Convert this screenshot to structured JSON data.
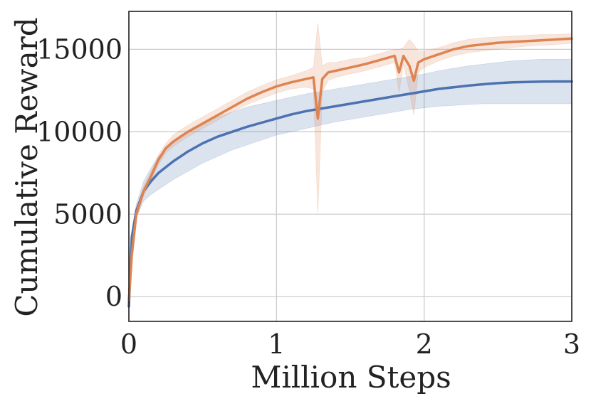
{
  "chart_data": {
    "type": "line",
    "xlabel": "Million Steps",
    "ylabel": "Cumulative Reward",
    "xlim": [
      0,
      3
    ],
    "ylim": [
      -1500,
      17300
    ],
    "xticks": [
      0,
      1,
      2,
      3
    ],
    "xtick_labels": [
      "0",
      "1",
      "2",
      "3"
    ],
    "yticks": [
      0,
      5000,
      10000,
      15000
    ],
    "ytick_labels": [
      "0",
      "5000",
      "10000",
      "15000"
    ],
    "grid": true,
    "legend": "none",
    "series": [
      {
        "color": "#4C72B0",
        "x": [
          0,
          0.02,
          0.05,
          0.1,
          0.15,
          0.2,
          0.3,
          0.4,
          0.5,
          0.6,
          0.7,
          0.8,
          0.9,
          1.0,
          1.1,
          1.2,
          1.3,
          1.4,
          1.5,
          1.6,
          1.7,
          1.8,
          1.9,
          2.0,
          2.1,
          2.2,
          2.3,
          2.4,
          2.5,
          2.6,
          2.7,
          2.8,
          2.9,
          3.0
        ],
        "y": [
          -600,
          3600,
          5200,
          6400,
          7000,
          7500,
          8200,
          8800,
          9300,
          9700,
          10000,
          10300,
          10550,
          10800,
          11050,
          11250,
          11400,
          11550,
          11700,
          11850,
          12000,
          12150,
          12300,
          12450,
          12600,
          12700,
          12800,
          12880,
          12950,
          13000,
          13020,
          13040,
          13050,
          13050
        ],
        "lower": [
          -600,
          3200,
          4800,
          5800,
          6200,
          6500,
          7100,
          7600,
          8100,
          8500,
          8900,
          9200,
          9500,
          9800,
          10000,
          10200,
          10400,
          10600,
          10750,
          10900,
          11050,
          11200,
          11350,
          11450,
          11550,
          11600,
          11650,
          11700,
          11700,
          11700,
          11700,
          11700,
          11700,
          11700
        ],
        "upper": [
          -600,
          4000,
          5600,
          7000,
          7800,
          8500,
          9300,
          10000,
          10500,
          10900,
          11200,
          11500,
          11700,
          11900,
          12100,
          12300,
          12450,
          12600,
          12750,
          12900,
          13050,
          13200,
          13350,
          13500,
          13700,
          13850,
          14000,
          14100,
          14200,
          14300,
          14350,
          14400,
          14400,
          14400
        ]
      },
      {
        "color": "#DD8452",
        "x": [
          0,
          0.02,
          0.05,
          0.1,
          0.15,
          0.2,
          0.25,
          0.3,
          0.4,
          0.5,
          0.6,
          0.7,
          0.8,
          0.9,
          1.0,
          1.1,
          1.2,
          1.25,
          1.28,
          1.31,
          1.35,
          1.4,
          1.5,
          1.6,
          1.7,
          1.8,
          1.83,
          1.86,
          1.9,
          1.93,
          1.96,
          2.0,
          2.1,
          2.2,
          2.3,
          2.4,
          2.5,
          2.6,
          2.7,
          2.8,
          2.9,
          3.0
        ],
        "y": [
          -200,
          2500,
          5000,
          6400,
          7300,
          8300,
          9000,
          9400,
          10000,
          10500,
          11000,
          11500,
          12000,
          12400,
          12750,
          13000,
          13200,
          13300,
          10800,
          13200,
          13600,
          13700,
          13900,
          14100,
          14350,
          14600,
          13600,
          14600,
          14000,
          13100,
          14200,
          14400,
          14700,
          15000,
          15200,
          15300,
          15400,
          15450,
          15500,
          15550,
          15600,
          15650
        ],
        "lower": [
          -200,
          2300,
          4700,
          6100,
          7000,
          8000,
          8700,
          9100,
          9700,
          10200,
          10700,
          11200,
          11650,
          12000,
          12350,
          12600,
          12700,
          12600,
          5000,
          12400,
          13100,
          13300,
          13500,
          13700,
          13950,
          14200,
          12400,
          14100,
          12500,
          11000,
          13600,
          13900,
          14300,
          14600,
          14800,
          14900,
          15000,
          15100,
          15200,
          15250,
          15300,
          15350
        ],
        "upper": [
          -200,
          2700,
          5300,
          6700,
          7600,
          8600,
          9300,
          9800,
          10400,
          10900,
          11400,
          11900,
          12400,
          12800,
          13150,
          13400,
          13700,
          13900,
          16600,
          14000,
          14200,
          14200,
          14400,
          14500,
          14750,
          15000,
          15000,
          15100,
          15600,
          15300,
          14900,
          14900,
          15100,
          15400,
          15600,
          15700,
          15750,
          15800,
          15850,
          15900,
          15900,
          15950
        ]
      }
    ]
  }
}
